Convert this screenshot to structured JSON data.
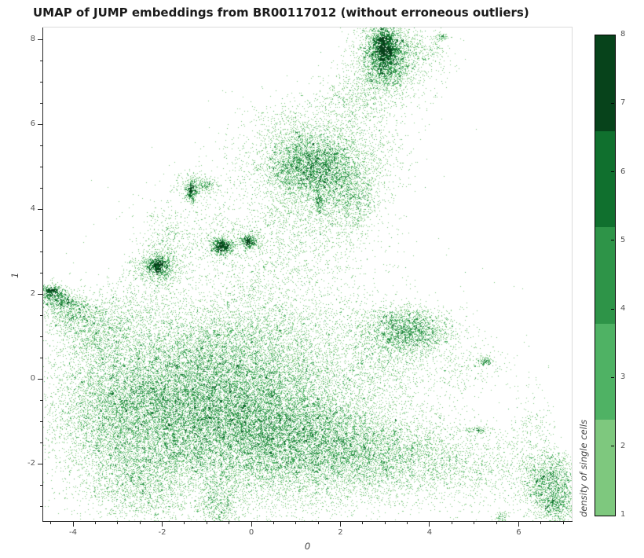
{
  "chart_data": {
    "type": "scatter",
    "title": "UMAP of JUMP embeddings from BR00117012 (without erroneous outliers)",
    "xlabel": "0",
    "ylabel": "1",
    "xlim": [
      -4.67,
      7.19
    ],
    "ylim": [
      -3.35,
      8.28
    ],
    "x_major_ticks": [
      -4,
      -2,
      0,
      2,
      4,
      6
    ],
    "y_major_ticks": [
      8,
      6,
      4,
      2,
      0,
      -2
    ],
    "minor_tick_step": 0.5,
    "grid": false,
    "colorbar": {
      "label": "density of single cells",
      "range": [
        1,
        8
      ],
      "ticks": [
        1,
        2,
        3,
        4,
        5,
        6,
        7,
        8
      ],
      "segments": [
        {
          "from": 1.0,
          "to": 2.4,
          "color": "#7ec87e"
        },
        {
          "from": 2.4,
          "to": 3.8,
          "color": "#4fb264"
        },
        {
          "from": 3.8,
          "to": 5.2,
          "color": "#2e9448"
        },
        {
          "from": 5.2,
          "to": 6.6,
          "color": "#10702e"
        },
        {
          "from": 6.6,
          "to": 8.0,
          "color": "#07431b"
        }
      ]
    },
    "point_color_levels": [
      "#7ec87e",
      "#4fb264",
      "#2e9448",
      "#10702e",
      "#07431b"
    ],
    "render": {
      "seed": 42,
      "point_size": 1,
      "cell_size": 3,
      "density_thresholds": [
        3,
        6,
        10,
        16
      ],
      "speckle": 0.06
    },
    "clusters": [
      {
        "name": "blob-core",
        "center": [
          -0.5,
          -0.85
        ],
        "sigma": [
          1.55,
          1.0
        ],
        "n": 11000
      },
      {
        "name": "blob-left",
        "center": [
          -1.9,
          -0.6
        ],
        "sigma": [
          1.15,
          0.95
        ],
        "n": 5500
      },
      {
        "name": "blob-right",
        "center": [
          0.9,
          -1.3
        ],
        "sigma": [
          1.15,
          0.75
        ],
        "n": 5000
      },
      {
        "name": "blob-upper",
        "center": [
          -0.1,
          0.7
        ],
        "sigma": [
          1.4,
          0.75
        ],
        "n": 4200
      },
      {
        "name": "blob-far-left",
        "center": [
          -3.1,
          -0.8
        ],
        "sigma": [
          0.75,
          0.85
        ],
        "n": 2600
      },
      {
        "name": "blob-lower-right",
        "center": [
          1.9,
          -1.85
        ],
        "sigma": [
          0.95,
          0.5
        ],
        "n": 2200
      },
      {
        "name": "blob-bottom-left",
        "center": [
          -2.5,
          -2.4
        ],
        "sigma": [
          0.65,
          0.5
        ],
        "n": 1300
      },
      {
        "name": "blob-bottom-tail",
        "center": [
          -0.72,
          -2.95
        ],
        "sigma": [
          0.22,
          0.35
        ],
        "n": 500
      },
      {
        "name": "blob-halo",
        "center": [
          -0.5,
          -0.6
        ],
        "sigma": [
          2.3,
          1.6
        ],
        "n": 3000
      },
      {
        "name": "field-mid",
        "center": [
          0.6,
          2.7
        ],
        "sigma": [
          1.1,
          0.8
        ],
        "n": 1100
      },
      {
        "name": "field-upper",
        "center": [
          1.4,
          3.8
        ],
        "sigma": [
          0.7,
          0.5
        ],
        "n": 650
      },
      {
        "name": "mid-cluster-core",
        "center": [
          1.35,
          5.05
        ],
        "sigma": [
          0.55,
          0.42
        ],
        "n": 3400
      },
      {
        "name": "mid-cluster-halo",
        "center": [
          1.3,
          5.0
        ],
        "sigma": [
          0.95,
          0.7
        ],
        "n": 1600
      },
      {
        "name": "mid-cluster-right",
        "center": [
          2.1,
          4.55
        ],
        "sigma": [
          0.4,
          0.3
        ],
        "n": 400
      },
      {
        "name": "mid-right-tail",
        "center": [
          2.35,
          4.2
        ],
        "sigma": [
          0.22,
          0.35
        ],
        "n": 350
      },
      {
        "name": "mid-below-right",
        "center": [
          2.2,
          3.6
        ],
        "sigma": [
          0.3,
          0.35
        ],
        "n": 120
      },
      {
        "name": "streak-vertical",
        "center": [
          1.53,
          4.15
        ],
        "sigma": [
          0.05,
          0.18
        ],
        "n": 140
      },
      {
        "name": "mid-top-sparse",
        "center": [
          1.1,
          6.0
        ],
        "sigma": [
          0.6,
          0.35
        ],
        "n": 220
      },
      {
        "name": "mid-right-sparse",
        "center": [
          2.7,
          5.3
        ],
        "sigma": [
          0.45,
          0.45
        ],
        "n": 250
      },
      {
        "name": "bridge-top",
        "center": [
          2.3,
          6.5
        ],
        "sigma": [
          0.45,
          0.4
        ],
        "n": 550
      },
      {
        "name": "top-cluster-core",
        "center": [
          3.0,
          7.6
        ],
        "sigma": [
          0.28,
          0.42
        ],
        "n": 2600
      },
      {
        "name": "top-cluster-peak",
        "center": [
          3.0,
          7.85
        ],
        "sigma": [
          0.13,
          0.2
        ],
        "n": 700
      },
      {
        "name": "top-cluster-halo",
        "center": [
          3.2,
          7.45
        ],
        "sigma": [
          0.55,
          0.5
        ],
        "n": 800
      },
      {
        "name": "top-right-wisp",
        "center": [
          3.85,
          7.75
        ],
        "sigma": [
          0.3,
          0.22
        ],
        "n": 160
      },
      {
        "name": "top-right-dash",
        "center": [
          4.25,
          8.05
        ],
        "sigma": [
          0.1,
          0.05
        ],
        "n": 70
      },
      {
        "name": "right-cluster",
        "center": [
          3.5,
          1.15
        ],
        "sigma": [
          0.5,
          0.28
        ],
        "n": 2000
      },
      {
        "name": "right-bridge",
        "center": [
          3.0,
          0.5
        ],
        "sigma": [
          0.55,
          0.5
        ],
        "n": 700
      },
      {
        "name": "right-sparse",
        "center": [
          4.6,
          0.35
        ],
        "sigma": [
          0.6,
          0.4
        ],
        "n": 300
      },
      {
        "name": "dash-a",
        "center": [
          5.25,
          0.42
        ],
        "sigma": [
          0.1,
          0.06
        ],
        "n": 110
      },
      {
        "name": "dash-b",
        "center": [
          5.1,
          -1.2
        ],
        "sigma": [
          0.17,
          0.04
        ],
        "n": 100
      },
      {
        "name": "arm-band",
        "center": [
          3.3,
          -1.8
        ],
        "sigma": [
          0.8,
          0.5
        ],
        "n": 1800
      },
      {
        "name": "arm-band-2",
        "center": [
          4.9,
          -2.1
        ],
        "sigma": [
          0.8,
          0.45
        ],
        "n": 1000
      },
      {
        "name": "arm-end-cluster",
        "center": [
          6.75,
          -2.45
        ],
        "sigma": [
          0.33,
          0.35
        ],
        "n": 1600
      },
      {
        "name": "arm-corner",
        "center": [
          6.9,
          -3.05
        ],
        "sigma": [
          0.3,
          0.22
        ],
        "n": 500
      },
      {
        "name": "clump-small",
        "center": [
          5.62,
          -3.25
        ],
        "sigma": [
          0.08,
          0.08
        ],
        "n": 70
      },
      {
        "name": "arm-upper-wisp",
        "center": [
          6.3,
          -1.2
        ],
        "sigma": [
          0.25,
          0.55
        ],
        "n": 220
      },
      {
        "name": "left-arm-tip",
        "center": [
          -4.45,
          1.95
        ],
        "sigma": [
          0.17,
          0.14
        ],
        "n": 450
      },
      {
        "name": "left-arm-streak1",
        "center": [
          -4.5,
          2.08
        ],
        "sigma": [
          0.12,
          0.05
        ],
        "n": 180
      },
      {
        "name": "left-arm-streak2",
        "center": [
          -4.15,
          1.8
        ],
        "sigma": [
          0.13,
          0.06
        ],
        "n": 140
      },
      {
        "name": "left-arm-mid",
        "center": [
          -4.0,
          1.55
        ],
        "sigma": [
          0.3,
          0.24
        ],
        "n": 650
      },
      {
        "name": "left-arm-base",
        "center": [
          -3.4,
          1.0
        ],
        "sigma": [
          0.45,
          0.38
        ],
        "n": 850
      },
      {
        "name": "left-upper-sparse",
        "center": [
          -2.7,
          1.6
        ],
        "sigma": [
          0.5,
          0.4
        ],
        "n": 450
      },
      {
        "name": "knot-a-core",
        "center": [
          -2.1,
          2.68
        ],
        "sigma": [
          0.11,
          0.09
        ],
        "n": 320
      },
      {
        "name": "knot-a",
        "center": [
          -2.1,
          2.62
        ],
        "sigma": [
          0.28,
          0.22
        ],
        "n": 800
      },
      {
        "name": "knot-a-trail",
        "center": [
          -1.9,
          3.3
        ],
        "sigma": [
          0.25,
          0.35
        ],
        "n": 220
      },
      {
        "name": "knot-b-core",
        "center": [
          -0.65,
          3.12
        ],
        "sigma": [
          0.12,
          0.1
        ],
        "n": 500
      },
      {
        "name": "knot-b-halo",
        "center": [
          -0.6,
          3.2
        ],
        "sigma": [
          0.3,
          0.25
        ],
        "n": 260
      },
      {
        "name": "knot-c",
        "center": [
          -0.05,
          3.22
        ],
        "sigma": [
          0.08,
          0.08
        ],
        "n": 260
      },
      {
        "name": "knot-c-halo",
        "center": [
          0.0,
          3.25
        ],
        "sigma": [
          0.2,
          0.18
        ],
        "n": 120
      },
      {
        "name": "knot-d-core",
        "center": [
          -1.34,
          4.42
        ],
        "sigma": [
          0.06,
          0.14
        ],
        "n": 280
      },
      {
        "name": "knot-d-halo",
        "center": [
          -1.25,
          4.5
        ],
        "sigma": [
          0.3,
          0.2
        ],
        "n": 230
      },
      {
        "name": "knot-d-side",
        "center": [
          -1.03,
          4.55
        ],
        "sigma": [
          0.13,
          0.07
        ],
        "n": 110
      },
      {
        "name": "upper-left-sparse",
        "center": [
          -1.5,
          3.6
        ],
        "sigma": [
          0.7,
          0.6
        ],
        "n": 260
      }
    ]
  }
}
